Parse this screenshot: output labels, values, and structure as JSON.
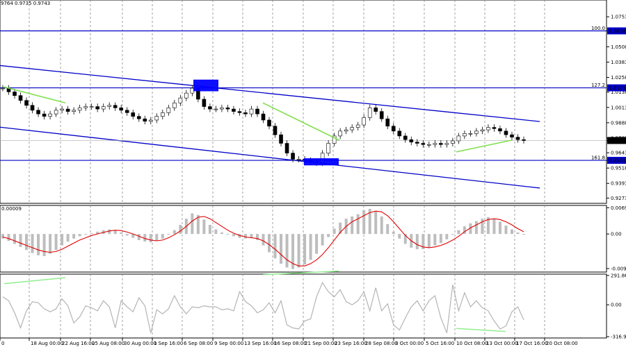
{
  "chart_data": [
    {
      "type": "candlestick",
      "title": "9764 0.9735 0.9743",
      "ylim": [
        0.923,
        1.089
      ],
      "y_ticks": [
        "1.0753",
        "1.0638",
        "1.0508",
        "1.0383",
        "1.0258",
        "1.0138",
        "1.0013",
        "0.9888",
        "0.9763",
        "0.9743",
        "0.9643",
        "0.9581",
        "0.9518",
        "0.9393",
        "0.9273"
      ],
      "current_price": "0.9743",
      "current_value": 0.9743,
      "close": [
        1.017,
        1.014,
        1.011,
        1.007,
        1.003,
        0.999,
        0.996,
        0.994,
        0.996,
        0.999,
        1.0,
        0.998,
        0.999,
        1.001,
        1.002,
        1.002,
        1.0,
        1.002,
        1.003,
        1.001,
        0.999,
        0.997,
        0.994,
        0.992,
        0.99,
        0.991,
        0.994,
        0.997,
        1.001,
        1.005,
        1.009,
        1.013,
        1.017,
        1.008,
        1.002,
        1.0,
        1.0,
        1.001,
        1.0,
        0.998,
        0.997,
        0.996,
        1.0,
        0.996,
        0.991,
        0.986,
        0.979,
        0.972,
        0.964,
        0.959,
        0.959,
        0.958,
        0.957,
        0.956,
        0.964,
        0.972,
        0.978,
        0.982,
        0.983,
        0.985,
        0.987,
        0.993,
        1.001,
        0.998,
        0.992,
        0.986,
        0.982,
        0.978,
        0.975,
        0.973,
        0.972,
        0.971,
        0.971,
        0.972,
        0.971,
        0.972,
        0.974,
        0.978,
        0.98,
        0.98,
        0.982,
        0.983,
        0.985,
        0.984,
        0.982,
        0.979,
        0.977,
        0.975,
        0.9743
      ],
      "horizontal_levels": [
        {
          "label": "100.0",
          "value": 1.0638,
          "price": "1.0638"
        },
        {
          "label": "127.2",
          "value": 1.0173,
          "price": "1.0173"
        },
        {
          "label": "161.8",
          "value": 0.9581,
          "price": "0.9581"
        }
      ],
      "x_tick_labels": [
        "0",
        "18 Aug 00:00",
        "22 Aug 16:00",
        "25 Aug 08:00",
        "30 Aug 00:00",
        "1 Sep 16:00",
        "6 Sep 08:00",
        "9 Sep 00:00",
        "13 Sep 16:00",
        "16 Sep 08:00",
        "21 Sep 00:00",
        "23 Sep 16:00",
        "28 Sep 08:00",
        "3 Oct 00:00",
        "5 Oct 16:00",
        "10 Oct 08:00",
        "13 Oct 00:00",
        "17 Oct 16:00",
        "20 Oct 08:00"
      ]
    },
    {
      "type": "histogram",
      "title": "0.00009",
      "y_ticks": [
        "0.0069",
        "0.00",
        "-0.00909"
      ],
      "ylim": [
        -0.01,
        0.0075
      ],
      "values": [
        -0.0012,
        -0.0018,
        -0.0026,
        -0.0034,
        -0.0042,
        -0.005,
        -0.0056,
        -0.0058,
        -0.0052,
        -0.0042,
        -0.003,
        -0.002,
        -0.0012,
        -0.0006,
        -0.0002,
        0.0002,
        0.0006,
        0.001,
        0.0012,
        0.001,
        0.0004,
        -0.0004,
        -0.001,
        -0.0016,
        -0.002,
        -0.0022,
        -0.0018,
        -0.0012,
        -0.0002,
        0.001,
        0.0024,
        0.004,
        0.0054,
        0.005,
        0.0038,
        0.0024,
        0.0012,
        0.0004,
        -0.0002,
        -0.0006,
        -0.001,
        -0.0012,
        -0.001,
        -0.0016,
        -0.003,
        -0.0048,
        -0.0064,
        -0.0078,
        -0.0088,
        -0.0092,
        -0.0088,
        -0.008,
        -0.0068,
        -0.0052,
        -0.003,
        -0.0008,
        0.0014,
        0.003,
        0.004,
        0.0046,
        0.0052,
        0.0062,
        0.0066,
        0.006,
        0.0046,
        0.0026,
        0.0006,
        -0.0012,
        -0.0026,
        -0.0036,
        -0.004,
        -0.004,
        -0.0036,
        -0.003,
        -0.0024,
        -0.0014,
        -0.0002,
        0.001,
        0.002,
        0.0028,
        0.0034,
        0.004,
        0.0044,
        0.004,
        0.0032,
        0.0022,
        0.0012,
        0.0004,
        -0.0002
      ],
      "signal": [
        -0.0008,
        -0.0012,
        -0.0018,
        -0.0024,
        -0.003,
        -0.0036,
        -0.0042,
        -0.0046,
        -0.0048,
        -0.0046,
        -0.004,
        -0.0032,
        -0.0024,
        -0.0016,
        -0.001,
        -0.0004,
        0.0,
        0.0004,
        0.0008,
        0.001,
        0.0009,
        0.0005,
        0.0,
        -0.0006,
        -0.0012,
        -0.0016,
        -0.0018,
        -0.0016,
        -0.001,
        -0.0002,
        0.0008,
        0.002,
        0.0034,
        0.0044,
        0.0046,
        0.004,
        0.003,
        0.002,
        0.001,
        0.0002,
        -0.0004,
        -0.0008,
        -0.001,
        -0.0012,
        -0.0018,
        -0.0028,
        -0.004,
        -0.0054,
        -0.0068,
        -0.0078,
        -0.0084,
        -0.0084,
        -0.0078,
        -0.0068,
        -0.0054,
        -0.0036,
        -0.0016,
        0.0004,
        0.002,
        0.0032,
        0.004,
        0.0048,
        0.0056,
        0.006,
        0.0058,
        0.0048,
        0.0032,
        0.0014,
        -0.0004,
        -0.0018,
        -0.0028,
        -0.0034,
        -0.0036,
        -0.0034,
        -0.003,
        -0.0024,
        -0.0016,
        -0.0006,
        0.0006,
        0.0016,
        0.0024,
        0.0032,
        0.0038,
        0.004,
        0.0038,
        0.0032,
        0.0024,
        0.0014,
        0.0006
      ]
    },
    {
      "type": "line",
      "y_ticks": [
        "291.8634",
        "0.00",
        "-316.947"
      ],
      "ylim": [
        -330,
        305
      ],
      "values": [
        80,
        40,
        -80,
        -230,
        -60,
        30,
        20,
        -40,
        -70,
        -40,
        60,
        -10,
        -180,
        -120,
        -10,
        -30,
        -60,
        40,
        -20,
        -230,
        40,
        -20,
        -70,
        70,
        -10,
        -280,
        -50,
        -90,
        -40,
        90,
        -20,
        -90,
        -20,
        -30,
        -10,
        -20,
        -20,
        -50,
        -40,
        -60,
        130,
        30,
        -10,
        -80,
        -50,
        20,
        -80,
        40,
        -200,
        -230,
        -240,
        -160,
        -140,
        80,
        220,
        130,
        80,
        150,
        30,
        0,
        40,
        130,
        -60,
        170,
        -60,
        10,
        -200,
        -250,
        -130,
        -20,
        40,
        -60,
        40,
        90,
        -130,
        -280,
        200,
        -60,
        120,
        -20,
        40,
        -30,
        -60,
        -160,
        -240,
        -210,
        -70,
        -20,
        -150
      ],
      "divergence_lines": [
        "rgba(144,238,144,1)"
      ]
    }
  ]
}
